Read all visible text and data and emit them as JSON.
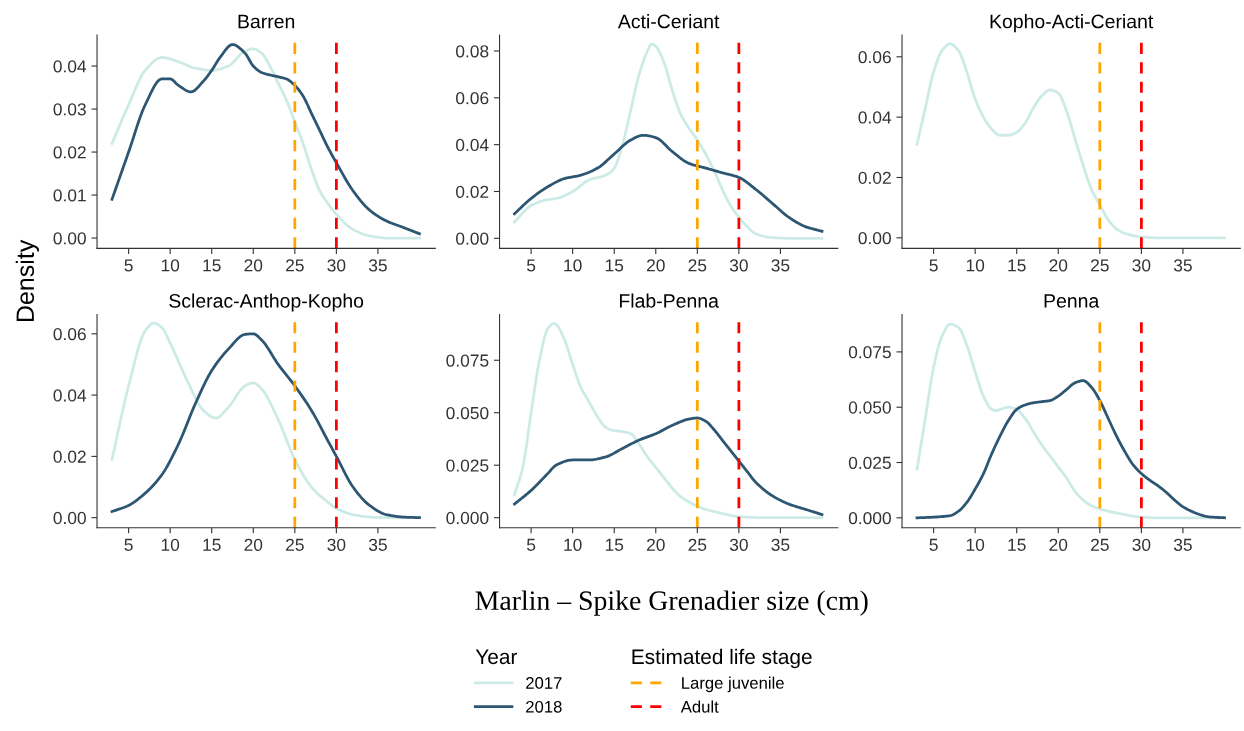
{
  "chart_data": [
    {
      "type": "line",
      "title": "Barren",
      "xlabel": "Marlin – Spike Grenadier size (cm)",
      "ylabel": "Density",
      "legend_title": "Year",
      "annotations": [
        "Estimated life stage"
      ],
      "legend": "bottom",
      "grid": false,
      "xlim": [
        1.2,
        41.9
      ],
      "xticks": [
        5,
        10,
        15,
        20,
        25,
        30,
        35
      ],
      "ylim": [
        -0.0024,
        0.0472
      ],
      "yticks": [
        {
          "value": 0,
          "label": "0.00"
        },
        {
          "value": 0.01,
          "label": "0.01"
        },
        {
          "value": 0.02,
          "label": "0.02"
        },
        {
          "value": 0.03,
          "label": "0.03"
        },
        {
          "value": 0.04,
          "label": "0.04"
        }
      ],
      "series": [
        {
          "name": "2017",
          "color": "#cdebe6",
          "x": [
            3,
            5,
            7,
            9,
            11,
            13,
            15,
            17,
            19,
            20,
            21,
            22,
            23,
            24,
            25,
            26,
            27,
            28,
            29,
            30,
            32,
            34,
            36,
            40
          ],
          "values": [
            0.022,
            0.031,
            0.039,
            0.042,
            0.041,
            0.0395,
            0.039,
            0.04,
            0.0435,
            0.044,
            0.043,
            0.04,
            0.036,
            0.032,
            0.027,
            0.022,
            0.016,
            0.011,
            0.008,
            0.0055,
            0.002,
            0.0005,
            0,
            0
          ]
        },
        {
          "name": "2018",
          "color": "#2d5673",
          "x": [
            3,
            5,
            7,
            9,
            10,
            11,
            12.5,
            14,
            15,
            16,
            17.5,
            19,
            20,
            21,
            23,
            24,
            25,
            26,
            27,
            28,
            29,
            30,
            32,
            34,
            36,
            38,
            40
          ],
          "values": [
            0.009,
            0.02,
            0.031,
            0.037,
            0.037,
            0.0355,
            0.034,
            0.0365,
            0.039,
            0.042,
            0.045,
            0.043,
            0.04,
            0.0385,
            0.0375,
            0.037,
            0.0355,
            0.033,
            0.029,
            0.025,
            0.021,
            0.0175,
            0.011,
            0.0065,
            0.004,
            0.0025,
            0.001
          ]
        }
      ],
      "ref_lines": [
        {
          "axis": "x",
          "value": 25,
          "label": "Large juvenile",
          "color": "#ffa500",
          "line_style": "dashed"
        },
        {
          "axis": "x",
          "value": 30,
          "label": "Adult",
          "color": "#ff0000",
          "line_style": "dashed"
        }
      ]
    },
    {
      "type": "line",
      "title": "Acti-Ceriant",
      "grid": false,
      "xlim": [
        1.2,
        41.9
      ],
      "xticks": [
        5,
        10,
        15,
        20,
        25,
        30,
        35
      ],
      "ylim": [
        -0.0043,
        0.0868
      ],
      "yticks": [
        {
          "value": 0,
          "label": "0.00"
        },
        {
          "value": 0.02,
          "label": "0.02"
        },
        {
          "value": 0.04,
          "label": "0.04"
        },
        {
          "value": 0.06,
          "label": "0.06"
        },
        {
          "value": 0.08,
          "label": "0.08"
        }
      ],
      "series": [
        {
          "name": "2017",
          "color": "#cdebe6",
          "x": [
            3,
            5,
            7,
            8,
            10,
            12,
            14,
            15,
            16,
            17,
            18,
            19,
            19.5,
            20,
            21,
            22,
            23,
            24,
            25,
            26,
            27,
            28,
            29,
            30,
            31,
            32,
            34,
            36,
            40
          ],
          "values": [
            0.007,
            0.014,
            0.0165,
            0.017,
            0.02,
            0.025,
            0.027,
            0.03,
            0.04,
            0.055,
            0.07,
            0.08,
            0.083,
            0.082,
            0.075,
            0.063,
            0.053,
            0.047,
            0.042,
            0.036,
            0.029,
            0.021,
            0.014,
            0.009,
            0.005,
            0.002,
            0.0003,
            0,
            0
          ]
        },
        {
          "name": "2018",
          "color": "#2d5673",
          "x": [
            3,
            5,
            7,
            9,
            11,
            13,
            15,
            17,
            18.5,
            20,
            22,
            24,
            26,
            28,
            30,
            32,
            34,
            36,
            38,
            40
          ],
          "values": [
            0.0105,
            0.017,
            0.022,
            0.0255,
            0.027,
            0.03,
            0.036,
            0.042,
            0.044,
            0.043,
            0.037,
            0.032,
            0.03,
            0.028,
            0.026,
            0.021,
            0.015,
            0.009,
            0.005,
            0.003
          ]
        }
      ],
      "ref_lines": [
        {
          "axis": "x",
          "value": 25,
          "color": "#ffa500",
          "line_style": "dashed"
        },
        {
          "axis": "x",
          "value": 30,
          "color": "#ff0000",
          "line_style": "dashed"
        }
      ]
    },
    {
      "type": "line",
      "title": "Kopho-Acti-Ceriant",
      "grid": false,
      "xlim": [
        1.2,
        41.9
      ],
      "xticks": [
        5,
        10,
        15,
        20,
        25,
        30,
        35
      ],
      "ylim": [
        -0.0035,
        0.0672
      ],
      "yticks": [
        {
          "value": 0,
          "label": "0.00"
        },
        {
          "value": 0.02,
          "label": "0.02"
        },
        {
          "value": 0.04,
          "label": "0.04"
        },
        {
          "value": 0.06,
          "label": "0.06"
        }
      ],
      "series": [
        {
          "name": "2017",
          "color": "#cdebe6",
          "x": [
            3,
            4,
            5,
            6,
            7,
            8,
            9,
            10,
            11,
            12,
            13,
            14,
            15,
            16,
            17,
            18,
            19,
            20,
            21,
            22,
            23,
            24,
            25,
            26,
            27,
            28,
            30,
            32,
            40
          ],
          "values": [
            0.031,
            0.043,
            0.055,
            0.062,
            0.0643,
            0.062,
            0.055,
            0.046,
            0.04,
            0.036,
            0.034,
            0.034,
            0.035,
            0.038,
            0.043,
            0.047,
            0.049,
            0.048,
            0.042,
            0.033,
            0.024,
            0.016,
            0.011,
            0.006,
            0.003,
            0.0015,
            0.0003,
            0,
            0
          ]
        }
      ],
      "ref_lines": [
        {
          "axis": "x",
          "value": 25,
          "color": "#ffa500",
          "line_style": "dashed"
        },
        {
          "axis": "x",
          "value": 30,
          "color": "#ff0000",
          "line_style": "dashed"
        }
      ]
    },
    {
      "type": "line",
      "title": "Sclerac-Anthop-Kopho",
      "grid": false,
      "xlim": [
        1.2,
        41.9
      ],
      "xticks": [
        5,
        10,
        15,
        20,
        25,
        30,
        35
      ],
      "ylim": [
        -0.0033,
        0.0663
      ],
      "yticks": [
        {
          "value": 0,
          "label": "0.00"
        },
        {
          "value": 0.02,
          "label": "0.02"
        },
        {
          "value": 0.04,
          "label": "0.04"
        },
        {
          "value": 0.06,
          "label": "0.06"
        }
      ],
      "series": [
        {
          "name": "2017",
          "color": "#cdebe6",
          "x": [
            3,
            5,
            7,
            8,
            9,
            10,
            12,
            14,
            15.5,
            17,
            19,
            20,
            21,
            23,
            25,
            27,
            29,
            30,
            32,
            34,
            36,
            40
          ],
          "values": [
            0.019,
            0.043,
            0.061,
            0.0635,
            0.062,
            0.057,
            0.045,
            0.035,
            0.0325,
            0.036,
            0.043,
            0.044,
            0.042,
            0.032,
            0.019,
            0.01,
            0.005,
            0.003,
            0.001,
            0.0002,
            0,
            0
          ]
        },
        {
          "name": "2018",
          "color": "#2d5673",
          "x": [
            3,
            5,
            7,
            9,
            11,
            13,
            15,
            17,
            19,
            20,
            21,
            23,
            25,
            27,
            29,
            30,
            32,
            34,
            36,
            38,
            40
          ],
          "values": [
            0.002,
            0.004,
            0.008,
            0.014,
            0.024,
            0.037,
            0.048,
            0.055,
            0.0598,
            0.06,
            0.058,
            0.05,
            0.043,
            0.035,
            0.025,
            0.02,
            0.01,
            0.004,
            0.001,
            0.0002,
            0
          ]
        }
      ],
      "ref_lines": [
        {
          "axis": "x",
          "value": 25,
          "color": "#ffa500",
          "line_style": "dashed"
        },
        {
          "axis": "x",
          "value": 30,
          "color": "#ff0000",
          "line_style": "dashed"
        }
      ]
    },
    {
      "type": "line",
      "title": "Flab-Penna",
      "grid": false,
      "xlim": [
        1.2,
        41.9
      ],
      "xticks": [
        5,
        10,
        15,
        20,
        25,
        30,
        35
      ],
      "ylim": [
        -0.0048,
        0.0968
      ],
      "yticks": [
        {
          "value": 0,
          "label": "0.000"
        },
        {
          "value": 0.025,
          "label": "0.025"
        },
        {
          "value": 0.05,
          "label": "0.050"
        },
        {
          "value": 0.075,
          "label": "0.075"
        }
      ],
      "series": [
        {
          "name": "2017",
          "color": "#cdebe6",
          "x": [
            3,
            4,
            5,
            6,
            7,
            7.7,
            8,
            9,
            10,
            11,
            12,
            13,
            14,
            15,
            16,
            17,
            18,
            19,
            20,
            21,
            22,
            23,
            24,
            25,
            26,
            28,
            30,
            32,
            34,
            40
          ],
          "values": [
            0.011,
            0.024,
            0.05,
            0.075,
            0.09,
            0.0925,
            0.092,
            0.085,
            0.073,
            0.062,
            0.055,
            0.048,
            0.043,
            0.0415,
            0.041,
            0.04,
            0.035,
            0.029,
            0.024,
            0.019,
            0.014,
            0.01,
            0.0075,
            0.0055,
            0.004,
            0.002,
            0.0005,
            0.0001,
            0,
            0
          ]
        },
        {
          "name": "2018",
          "color": "#2d5673",
          "x": [
            3,
            5,
            7,
            8,
            10,
            12,
            14,
            16,
            18,
            20,
            22,
            24,
            25,
            26,
            27,
            28,
            29,
            30,
            31,
            32,
            34,
            36,
            38,
            40
          ],
          "values": [
            0.0065,
            0.013,
            0.021,
            0.025,
            0.0275,
            0.0275,
            0.029,
            0.033,
            0.037,
            0.04,
            0.044,
            0.047,
            0.0475,
            0.046,
            0.042,
            0.037,
            0.032,
            0.027,
            0.022,
            0.017,
            0.0105,
            0.0065,
            0.004,
            0.0015
          ]
        }
      ],
      "ref_lines": [
        {
          "axis": "x",
          "value": 25,
          "color": "#ffa500",
          "line_style": "dashed"
        },
        {
          "axis": "x",
          "value": 30,
          "color": "#ff0000",
          "line_style": "dashed"
        }
      ]
    },
    {
      "type": "line",
      "title": "Penna",
      "grid": false,
      "xlim": [
        1.2,
        41.9
      ],
      "xticks": [
        5,
        10,
        15,
        20,
        25,
        30,
        35
      ],
      "ylim": [
        -0.0045,
        0.0919
      ],
      "yticks": [
        {
          "value": 0,
          "label": "0.000"
        },
        {
          "value": 0.025,
          "label": "0.025"
        },
        {
          "value": 0.05,
          "label": "0.050"
        },
        {
          "value": 0.075,
          "label": "0.075"
        }
      ],
      "series": [
        {
          "name": "2017",
          "color": "#cdebe6",
          "x": [
            3,
            4,
            5,
            6,
            7,
            8,
            9,
            10,
            11,
            12,
            12.5,
            13,
            14,
            15,
            16,
            17,
            18,
            19,
            20,
            21,
            22,
            23,
            24,
            25,
            26,
            28,
            30,
            32,
            40
          ],
          "values": [
            0.022,
            0.045,
            0.068,
            0.082,
            0.0875,
            0.086,
            0.078,
            0.066,
            0.055,
            0.049,
            0.0485,
            0.049,
            0.05,
            0.049,
            0.045,
            0.039,
            0.033,
            0.028,
            0.023,
            0.018,
            0.012,
            0.008,
            0.0055,
            0.004,
            0.003,
            0.0015,
            0.0003,
            0,
            0
          ]
        },
        {
          "name": "2018",
          "color": "#2d5673",
          "x": [
            3,
            5,
            7,
            8,
            9,
            10,
            11,
            12,
            13,
            14,
            15,
            16,
            17,
            18,
            19,
            20,
            21,
            22,
            23,
            24,
            25,
            26,
            27,
            28,
            29,
            30,
            31,
            32,
            33,
            34,
            35,
            36,
            37,
            38,
            40
          ],
          "values": [
            0,
            0.0003,
            0.001,
            0.003,
            0.007,
            0.013,
            0.02,
            0.029,
            0.037,
            0.044,
            0.049,
            0.051,
            0.052,
            0.0525,
            0.053,
            0.055,
            0.058,
            0.061,
            0.062,
            0.059,
            0.053,
            0.045,
            0.037,
            0.03,
            0.024,
            0.02,
            0.017,
            0.0145,
            0.0115,
            0.008,
            0.005,
            0.003,
            0.0015,
            0.0005,
            0
          ]
        }
      ],
      "ref_lines": [
        {
          "axis": "x",
          "value": 25,
          "color": "#ffa500",
          "line_style": "dashed"
        },
        {
          "axis": "x",
          "value": 30,
          "color": "#ff0000",
          "line_style": "dashed"
        }
      ]
    }
  ]
}
